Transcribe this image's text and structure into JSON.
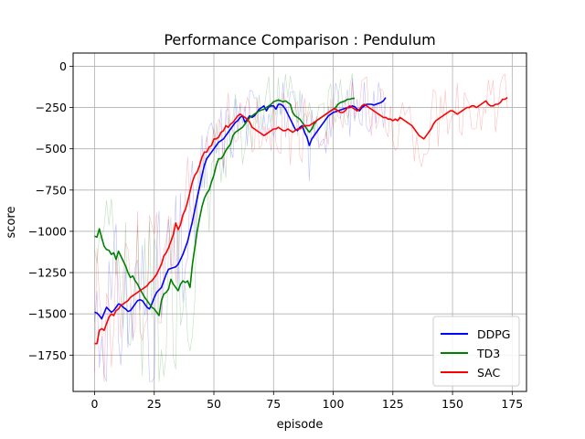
{
  "chart_data": {
    "type": "line",
    "title": "Performance Comparison : Pendulum",
    "xlabel": "episode",
    "ylabel": "score",
    "xlim": [
      -9,
      181
    ],
    "ylim": [
      -1970,
      80
    ],
    "xticks": [
      0,
      25,
      50,
      75,
      100,
      125,
      150,
      175
    ],
    "yticks": [
      0,
      -250,
      -500,
      -750,
      -1000,
      -1250,
      -1500,
      -1750
    ],
    "grid": true,
    "legend": "lower-right",
    "series": [
      {
        "name": "DDPG",
        "color": "#0000ff",
        "x": [
          0,
          1,
          2,
          3,
          4,
          5,
          6,
          7,
          8,
          9,
          10,
          11,
          12,
          13,
          14,
          15,
          16,
          17,
          18,
          19,
          20,
          21,
          22,
          23,
          24,
          25,
          26,
          27,
          28,
          29,
          30,
          31,
          32,
          33,
          34,
          35,
          36,
          37,
          38,
          39,
          40,
          41,
          42,
          43,
          44,
          45,
          46,
          47,
          48,
          49,
          50,
          51,
          52,
          53,
          54,
          55,
          56,
          57,
          58,
          59,
          60,
          61,
          62,
          63,
          64,
          65,
          66,
          67,
          68,
          69,
          70,
          71,
          72,
          73,
          74,
          75,
          76,
          77,
          78,
          79,
          80,
          81,
          82,
          83,
          84,
          85,
          86,
          87,
          88,
          89,
          90,
          91,
          92,
          93,
          94,
          95,
          96,
          97,
          98,
          99,
          100,
          101,
          102,
          103,
          104,
          105,
          106,
          107,
          108,
          109,
          110,
          111,
          112,
          113,
          114,
          115,
          116,
          117,
          118,
          119,
          120,
          121,
          122
        ],
        "values": [
          -1490,
          -1495,
          -1510,
          -1530,
          -1495,
          -1460,
          -1475,
          -1490,
          -1480,
          -1460,
          -1440,
          -1445,
          -1460,
          -1470,
          -1485,
          -1480,
          -1460,
          -1440,
          -1420,
          -1415,
          -1420,
          -1440,
          -1460,
          -1470,
          -1440,
          -1400,
          -1370,
          -1355,
          -1340,
          -1300,
          -1260,
          -1230,
          -1225,
          -1220,
          -1215,
          -1200,
          -1170,
          -1140,
          -1100,
          -1060,
          -1000,
          -940,
          -870,
          -800,
          -730,
          -660,
          -600,
          -560,
          -540,
          -520,
          -500,
          -480,
          -460,
          -450,
          -440,
          -420,
          -400,
          -380,
          -360,
          -340,
          -330,
          -310,
          -300,
          -340,
          -320,
          -300,
          -310,
          -300,
          -280,
          -260,
          -250,
          -240,
          -270,
          -245,
          -240,
          -240,
          -260,
          -230,
          -230,
          -240,
          -260,
          -290,
          -320,
          -350,
          -380,
          -390,
          -370,
          -360,
          -400,
          -430,
          -480,
          -440,
          -420,
          -400,
          -380,
          -360,
          -340,
          -320,
          -300,
          -290,
          -280,
          -275,
          -270,
          -265,
          -260,
          -255,
          -250,
          -250,
          -240,
          -245,
          -260,
          -270,
          -250,
          -240,
          -230,
          -230,
          -230,
          -235,
          -230,
          -225,
          -220,
          -210,
          -190
        ]
      },
      {
        "name": "TD3",
        "color": "#008000",
        "x": [
          0,
          1,
          2,
          3,
          4,
          5,
          6,
          7,
          8,
          9,
          10,
          11,
          12,
          13,
          14,
          15,
          16,
          17,
          18,
          19,
          20,
          21,
          22,
          23,
          24,
          25,
          26,
          27,
          28,
          29,
          30,
          31,
          32,
          33,
          34,
          35,
          36,
          37,
          38,
          39,
          40,
          41,
          42,
          43,
          44,
          45,
          46,
          47,
          48,
          49,
          50,
          51,
          52,
          53,
          54,
          55,
          56,
          57,
          58,
          59,
          60,
          61,
          62,
          63,
          64,
          65,
          66,
          67,
          68,
          69,
          70,
          71,
          72,
          73,
          74,
          75,
          76,
          77,
          78,
          79,
          80,
          81,
          82,
          83,
          84,
          85,
          86,
          87,
          88,
          89,
          90,
          91,
          92,
          93,
          94,
          95,
          96,
          97,
          98,
          99,
          100,
          101,
          102,
          103,
          104,
          105,
          106,
          107,
          108,
          109
        ],
        "values": [
          -1030,
          -1035,
          -985,
          -1040,
          -1090,
          -1110,
          -1115,
          -1140,
          -1130,
          -1170,
          -1120,
          -1150,
          -1180,
          -1210,
          -1250,
          -1280,
          -1270,
          -1300,
          -1320,
          -1350,
          -1375,
          -1400,
          -1420,
          -1440,
          -1460,
          -1470,
          -1490,
          -1510,
          -1420,
          -1380,
          -1370,
          -1350,
          -1290,
          -1320,
          -1340,
          -1360,
          -1320,
          -1300,
          -1310,
          -1300,
          -1340,
          -1200,
          -1100,
          -1000,
          -920,
          -850,
          -800,
          -770,
          -750,
          -700,
          -660,
          -600,
          -560,
          -560,
          -540,
          -510,
          -490,
          -470,
          -420,
          -400,
          -390,
          -380,
          -370,
          -350,
          -330,
          -310,
          -300,
          -290,
          -280,
          -270,
          -265,
          -260,
          -250,
          -240,
          -230,
          -215,
          -210,
          -205,
          -210,
          -215,
          -210,
          -220,
          -230,
          -280,
          -300,
          -310,
          -320,
          -340,
          -360,
          -380,
          -400,
          -380,
          -350,
          -330,
          -320,
          -310,
          -300,
          -290,
          -280,
          -270,
          -260,
          -250,
          -230,
          -220,
          -215,
          -210,
          -200,
          -200,
          -195,
          -195
        ]
      },
      {
        "name": "SAC",
        "color": "#ff0000",
        "x": [
          0,
          1,
          2,
          3,
          4,
          5,
          6,
          7,
          8,
          9,
          10,
          11,
          12,
          13,
          14,
          15,
          16,
          17,
          18,
          19,
          20,
          21,
          22,
          23,
          24,
          25,
          26,
          27,
          28,
          29,
          30,
          31,
          32,
          33,
          34,
          35,
          36,
          37,
          38,
          39,
          40,
          41,
          42,
          43,
          44,
          45,
          46,
          47,
          48,
          49,
          50,
          51,
          52,
          53,
          54,
          55,
          56,
          57,
          58,
          59,
          60,
          61,
          62,
          63,
          64,
          65,
          66,
          67,
          68,
          69,
          70,
          71,
          72,
          73,
          74,
          75,
          76,
          77,
          78,
          79,
          80,
          81,
          82,
          83,
          84,
          85,
          86,
          87,
          88,
          89,
          90,
          91,
          92,
          93,
          94,
          95,
          96,
          97,
          98,
          99,
          100,
          101,
          102,
          103,
          104,
          105,
          106,
          107,
          108,
          109,
          110,
          111,
          112,
          113,
          114,
          115,
          116,
          117,
          118,
          119,
          120,
          121,
          122,
          123,
          124,
          125,
          126,
          127,
          128,
          129,
          130,
          131,
          132,
          133,
          134,
          135,
          136,
          137,
          138,
          139,
          140,
          141,
          142,
          143,
          144,
          145,
          146,
          147,
          148,
          149,
          150,
          151,
          152,
          153,
          154,
          155,
          156,
          157,
          158,
          159,
          160,
          161,
          162,
          163,
          164,
          165,
          166,
          167,
          168,
          169,
          170,
          171,
          172,
          173
        ],
        "values": [
          -1680,
          -1680,
          -1600,
          -1590,
          -1600,
          -1560,
          -1520,
          -1500,
          -1510,
          -1480,
          -1470,
          -1450,
          -1440,
          -1430,
          -1420,
          -1400,
          -1390,
          -1380,
          -1370,
          -1360,
          -1350,
          -1340,
          -1330,
          -1310,
          -1300,
          -1280,
          -1260,
          -1230,
          -1200,
          -1150,
          -1130,
          -1100,
          -1060,
          -1020,
          -950,
          -990,
          -960,
          -900,
          -870,
          -820,
          -760,
          -700,
          -660,
          -640,
          -600,
          -550,
          -520,
          -520,
          -490,
          -480,
          -440,
          -440,
          -430,
          -400,
          -390,
          -360,
          -370,
          -350,
          -340,
          -320,
          -300,
          -290,
          -300,
          -310,
          -320,
          -340,
          -370,
          -380,
          -390,
          -400,
          -410,
          -420,
          -410,
          -400,
          -390,
          -380,
          -380,
          -370,
          -380,
          -390,
          -390,
          -380,
          -390,
          -400,
          -390,
          -380,
          -380,
          -370,
          -360,
          -360,
          -360,
          -350,
          -340,
          -330,
          -320,
          -310,
          -300,
          -290,
          -280,
          -270,
          -260,
          -260,
          -270,
          -280,
          -280,
          -270,
          -250,
          -240,
          -250,
          -260,
          -270,
          -260,
          -240,
          -230,
          -240,
          -250,
          -260,
          -270,
          -280,
          -290,
          -300,
          -310,
          -310,
          -320,
          -320,
          -330,
          -320,
          -330,
          -310,
          -320,
          -330,
          -340,
          -350,
          -360,
          -380,
          -400,
          -420,
          -430,
          -440,
          -420,
          -400,
          -380,
          -350,
          -330,
          -320,
          -310,
          -300,
          -290,
          -280,
          -270,
          -270,
          -280,
          -290,
          -280,
          -270,
          -260,
          -250,
          -250,
          -240,
          -240,
          -250,
          -240,
          -230,
          -220,
          -210,
          -230,
          -240,
          -240,
          -230,
          -230,
          -220,
          -200,
          -200,
          -190
        ]
      }
    ]
  }
}
